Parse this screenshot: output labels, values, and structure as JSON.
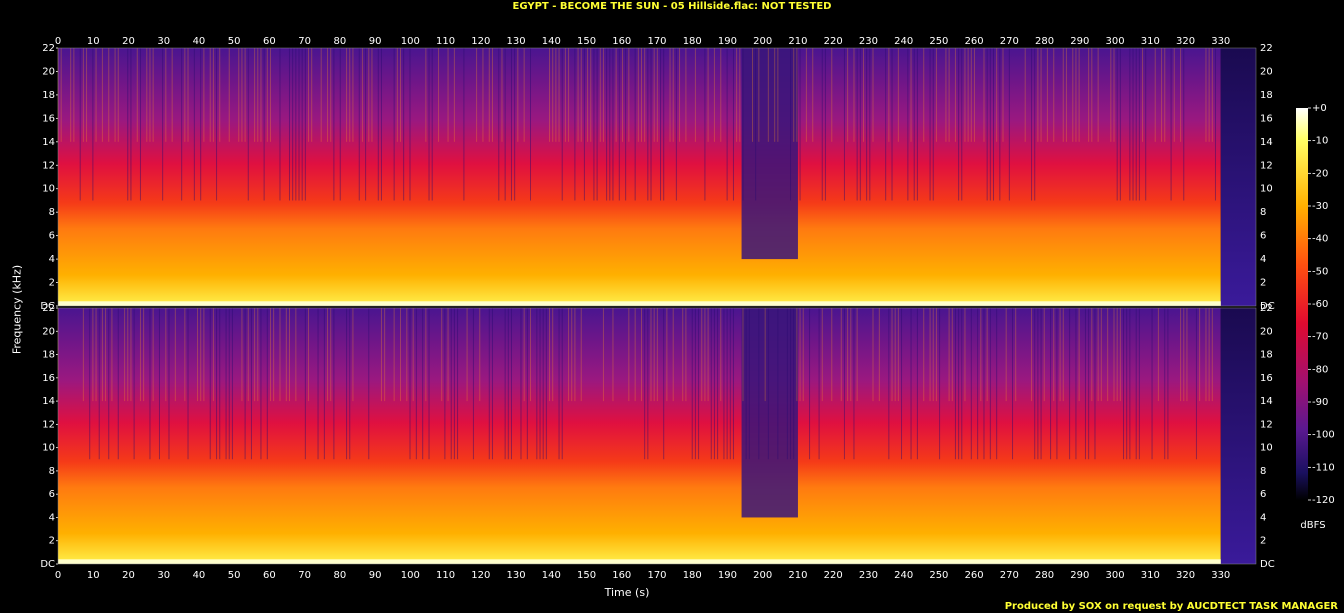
{
  "title": "EGYPT - BECOME THE SUN - 05 Hillside.flac: NOT TESTED",
  "footer": "Produced by SOX on request by AUCDTECT TASK MANAGER",
  "chart_data": {
    "type": "heatmap",
    "title": "EGYPT - BECOME THE SUN - 05 Hillside.flac: NOT TESTED",
    "xlabel": "Time (s)",
    "ylabel": "Frequency (kHz)",
    "x_ticks": [
      0,
      10,
      20,
      30,
      40,
      50,
      60,
      70,
      80,
      90,
      100,
      110,
      120,
      130,
      140,
      150,
      160,
      170,
      180,
      190,
      200,
      210,
      220,
      230,
      240,
      250,
      260,
      270,
      280,
      290,
      300,
      310,
      320,
      330
    ],
    "y_ticks": [
      "DC",
      "2",
      "4",
      "6",
      "8",
      "10",
      "12",
      "14",
      "16",
      "18",
      "20",
      "22"
    ],
    "xlim": [
      0,
      340
    ],
    "ylim": [
      0,
      22
    ],
    "channels": 2,
    "colorbar": {
      "label": "dBFS",
      "ticks": [
        "+0",
        "-10",
        "-20",
        "-30",
        "-40",
        "-50",
        "-60",
        "-70",
        "-80",
        "-90",
        "-100",
        "-110",
        "-120"
      ],
      "range": [
        -120,
        0
      ]
    },
    "features": {
      "track_end_s": 330,
      "dropout_start_s": 194,
      "dropout_end_s": 210,
      "energy_bands_kHz": [
        {
          "from": 0,
          "to": 4,
          "level_dBFS": -35
        },
        {
          "from": 4,
          "to": 9,
          "level_dBFS": -50
        },
        {
          "from": 9,
          "to": 14,
          "level_dBFS": -62
        },
        {
          "from": 14,
          "to": 22,
          "level_dBFS": -82
        }
      ]
    }
  }
}
